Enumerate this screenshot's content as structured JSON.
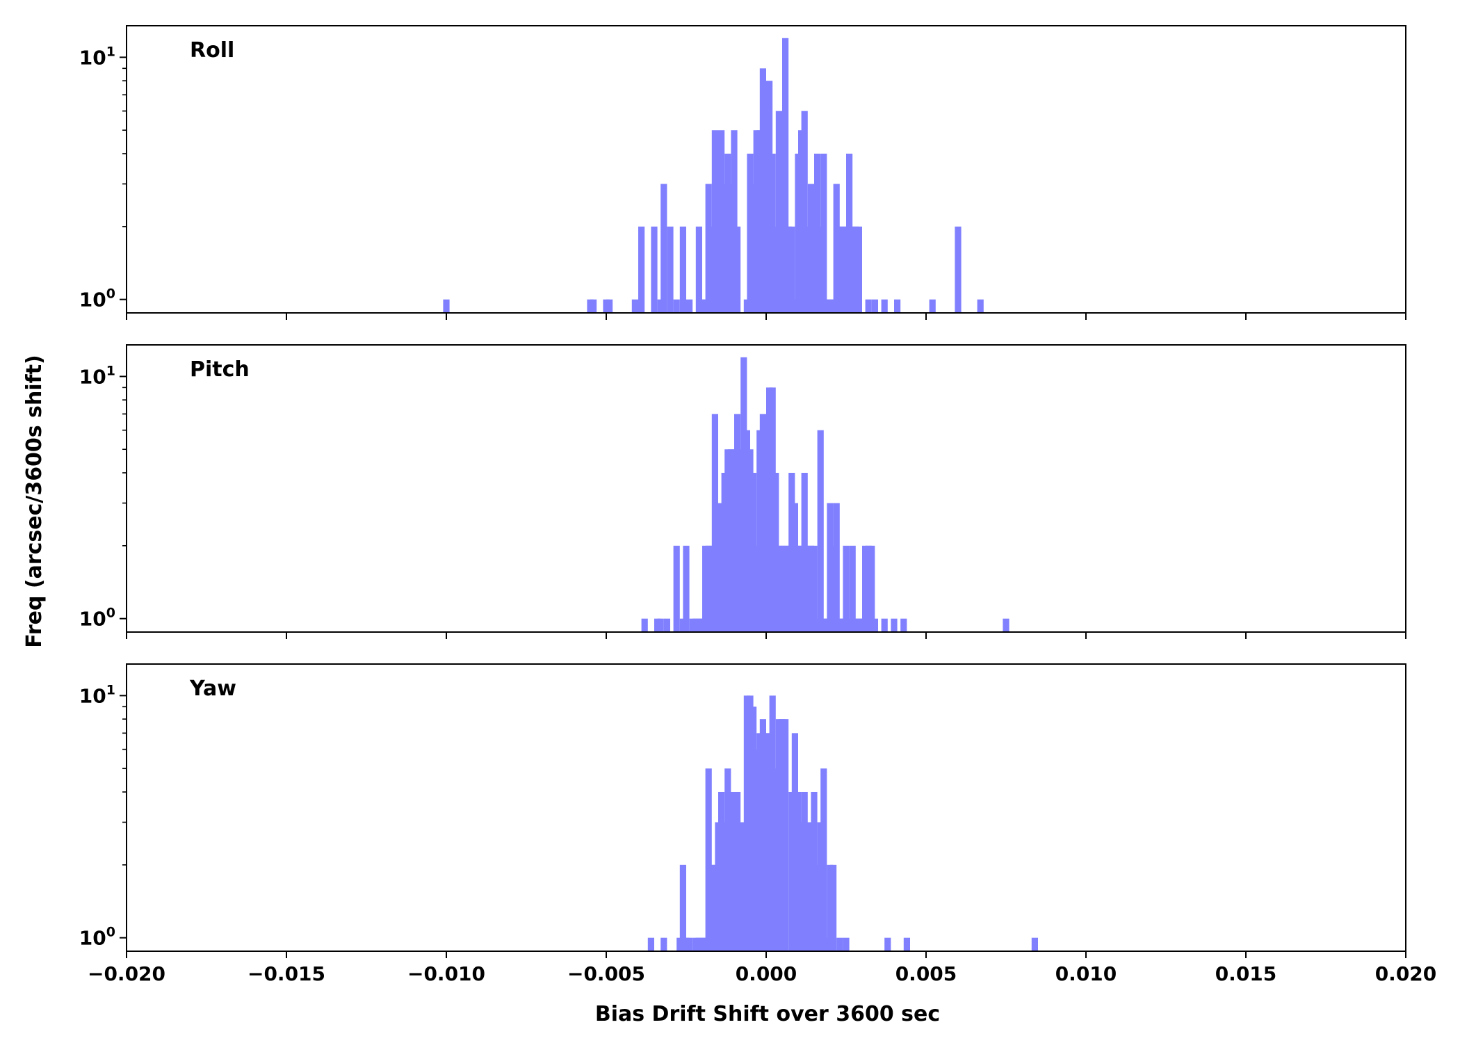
{
  "chart_data": {
    "type": "bar",
    "bin_width": 0.0002,
    "xlabel": "Bias Drift Shift over 3600 sec",
    "ylabel": "Freq (arcsec/3600s shift)",
    "xlim": [
      -0.02,
      0.02
    ],
    "ylim": [
      0.88,
      13.5
    ],
    "yscale": "log",
    "x_ticks": [
      -0.02,
      -0.015,
      -0.01,
      -0.005,
      0.0,
      0.005,
      0.01,
      0.015,
      0.02
    ],
    "x_tick_labels": [
      "−0.020",
      "−0.015",
      "−0.010",
      "−0.005",
      "0.000",
      "0.005",
      "0.010",
      "0.015",
      "0.020"
    ],
    "y_ticks": [
      {
        "value": 1,
        "base": "10",
        "exp": "0"
      },
      {
        "value": 10,
        "base": "10",
        "exp": "1"
      }
    ],
    "bar_color": "#8080ff",
    "panels": [
      {
        "label": "Roll",
        "bins": [
          [
            -0.0101,
            1
          ],
          [
            -0.0056,
            1
          ],
          [
            -0.0055,
            1
          ],
          [
            -0.0051,
            1
          ],
          [
            -0.005,
            1
          ],
          [
            -0.0042,
            1
          ],
          [
            -0.004,
            2
          ],
          [
            -0.0036,
            2
          ],
          [
            -0.0034,
            1
          ],
          [
            -0.0033,
            3
          ],
          [
            -0.0031,
            2
          ],
          [
            -0.0029,
            1
          ],
          [
            -0.0027,
            2
          ],
          [
            -0.0025,
            1
          ],
          [
            -0.0022,
            2
          ],
          [
            -0.0021,
            1
          ],
          [
            -0.002,
            1
          ],
          [
            -0.0019,
            3
          ],
          [
            -0.0018,
            2
          ],
          [
            -0.0017,
            5
          ],
          [
            -0.0016,
            3
          ],
          [
            -0.0015,
            5
          ],
          [
            -0.0014,
            3
          ],
          [
            -0.0013,
            4
          ],
          [
            -0.0012,
            3
          ],
          [
            -0.0011,
            5
          ],
          [
            -0.001,
            2
          ],
          [
            -0.0007,
            1
          ],
          [
            -0.0006,
            4
          ],
          [
            -0.0005,
            3
          ],
          [
            -0.0004,
            5
          ],
          [
            -0.0003,
            5
          ],
          [
            -0.0002,
            9
          ],
          [
            -0.0001,
            3
          ],
          [
            0.0,
            8
          ],
          [
            0.0001,
            4
          ],
          [
            0.0002,
            2
          ],
          [
            0.0003,
            6
          ],
          [
            0.0004,
            2
          ],
          [
            0.0005,
            12
          ],
          [
            0.0006,
            2
          ],
          [
            0.0007,
            2
          ],
          [
            0.0008,
            1
          ],
          [
            0.0009,
            4
          ],
          [
            0.001,
            5
          ],
          [
            0.0011,
            6
          ],
          [
            0.0012,
            2
          ],
          [
            0.0013,
            3
          ],
          [
            0.0014,
            2
          ],
          [
            0.0015,
            4
          ],
          [
            0.0016,
            2
          ],
          [
            0.0017,
            4
          ],
          [
            0.0018,
            1
          ],
          [
            0.0019,
            1
          ],
          [
            0.002,
            1
          ],
          [
            0.0021,
            3
          ],
          [
            0.0022,
            2
          ],
          [
            0.0023,
            2
          ],
          [
            0.0024,
            2
          ],
          [
            0.0025,
            4
          ],
          [
            0.0026,
            2
          ],
          [
            0.0027,
            2
          ],
          [
            0.0028,
            2
          ],
          [
            0.0031,
            1
          ],
          [
            0.0033,
            1
          ],
          [
            0.0036,
            1
          ],
          [
            0.004,
            1
          ],
          [
            0.0051,
            1
          ],
          [
            0.0059,
            2
          ],
          [
            0.0066,
            1
          ]
        ]
      },
      {
        "label": "Pitch",
        "bins": [
          [
            -0.0039,
            1
          ],
          [
            -0.0035,
            1
          ],
          [
            -0.0034,
            1
          ],
          [
            -0.0032,
            1
          ],
          [
            -0.0029,
            2
          ],
          [
            -0.0027,
            1
          ],
          [
            -0.0026,
            2
          ],
          [
            -0.0024,
            1
          ],
          [
            -0.0023,
            1
          ],
          [
            -0.0022,
            1
          ],
          [
            -0.0021,
            1
          ],
          [
            -0.002,
            2
          ],
          [
            -0.0019,
            2
          ],
          [
            -0.0018,
            2
          ],
          [
            -0.0017,
            7
          ],
          [
            -0.0016,
            1
          ],
          [
            -0.0015,
            3
          ],
          [
            -0.0014,
            4
          ],
          [
            -0.0013,
            5
          ],
          [
            -0.0012,
            5
          ],
          [
            -0.0011,
            5
          ],
          [
            -0.001,
            7
          ],
          [
            -0.0009,
            5
          ],
          [
            -0.0008,
            12
          ],
          [
            -0.0007,
            6
          ],
          [
            -0.0006,
            5
          ],
          [
            -0.0005,
            4
          ],
          [
            -0.0004,
            2
          ],
          [
            -0.0003,
            6
          ],
          [
            -0.0002,
            7
          ],
          [
            -0.0001,
            4
          ],
          [
            0.0,
            9
          ],
          [
            0.0001,
            9
          ],
          [
            0.0002,
            4
          ],
          [
            0.0003,
            2
          ],
          [
            0.0004,
            2
          ],
          [
            0.0005,
            2
          ],
          [
            0.0006,
            2
          ],
          [
            0.0007,
            4
          ],
          [
            0.0008,
            3
          ],
          [
            0.0009,
            2
          ],
          [
            0.001,
            2
          ],
          [
            0.0011,
            4
          ],
          [
            0.0012,
            2
          ],
          [
            0.0013,
            2
          ],
          [
            0.0014,
            2
          ],
          [
            0.0015,
            1
          ],
          [
            0.0016,
            6
          ],
          [
            0.0017,
            1
          ],
          [
            0.0018,
            1
          ],
          [
            0.0019,
            3
          ],
          [
            0.002,
            2
          ],
          [
            0.0021,
            3
          ],
          [
            0.0022,
            1
          ],
          [
            0.0023,
            1
          ],
          [
            0.0024,
            2
          ],
          [
            0.0025,
            1
          ],
          [
            0.0026,
            2
          ],
          [
            0.0027,
            1
          ],
          [
            0.0028,
            1
          ],
          [
            0.0029,
            1
          ],
          [
            0.003,
            2
          ],
          [
            0.0031,
            2
          ],
          [
            0.0032,
            2
          ],
          [
            0.0033,
            1
          ],
          [
            0.0036,
            1
          ],
          [
            0.0039,
            1
          ],
          [
            0.0042,
            1
          ],
          [
            0.0074,
            1
          ]
        ]
      },
      {
        "label": "Yaw",
        "bins": [
          [
            -0.0037,
            1
          ],
          [
            -0.0033,
            1
          ],
          [
            -0.0028,
            1
          ],
          [
            -0.0027,
            2
          ],
          [
            -0.0026,
            1
          ],
          [
            -0.0025,
            1
          ],
          [
            -0.0023,
            1
          ],
          [
            -0.0022,
            1
          ],
          [
            -0.0021,
            1
          ],
          [
            -0.002,
            1
          ],
          [
            -0.0019,
            5
          ],
          [
            -0.0018,
            2
          ],
          [
            -0.0017,
            2
          ],
          [
            -0.0016,
            3
          ],
          [
            -0.0015,
            4
          ],
          [
            -0.0014,
            3
          ],
          [
            -0.0013,
            5
          ],
          [
            -0.0012,
            4
          ],
          [
            -0.0011,
            3
          ],
          [
            -0.001,
            4
          ],
          [
            -0.0009,
            3
          ],
          [
            -0.0008,
            3
          ],
          [
            -0.0007,
            10
          ],
          [
            -0.0006,
            10
          ],
          [
            -0.0005,
            9
          ],
          [
            -0.0004,
            6
          ],
          [
            -0.0003,
            7
          ],
          [
            -0.0002,
            8
          ],
          [
            -0.0001,
            7
          ],
          [
            0.0,
            7
          ],
          [
            0.0001,
            10
          ],
          [
            0.0002,
            5
          ],
          [
            0.0003,
            8
          ],
          [
            0.0004,
            8
          ],
          [
            0.0005,
            8
          ],
          [
            0.0007,
            4
          ],
          [
            0.0008,
            7
          ],
          [
            0.0009,
            4
          ],
          [
            0.001,
            3
          ],
          [
            0.0011,
            4
          ],
          [
            0.0012,
            3
          ],
          [
            0.0013,
            3
          ],
          [
            0.0014,
            4
          ],
          [
            0.0015,
            2
          ],
          [
            0.0016,
            3
          ],
          [
            0.0017,
            5
          ],
          [
            0.0018,
            1
          ],
          [
            0.0019,
            2
          ],
          [
            0.002,
            2
          ],
          [
            0.0022,
            1
          ],
          [
            0.0024,
            1
          ],
          [
            0.0037,
            1
          ],
          [
            0.0043,
            1
          ],
          [
            0.0083,
            1
          ]
        ]
      }
    ]
  }
}
